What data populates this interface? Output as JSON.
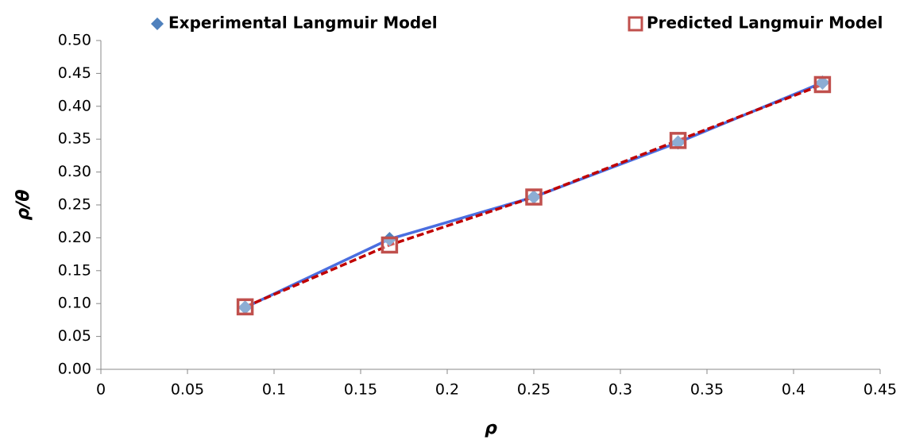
{
  "chart_data": {
    "type": "scatter",
    "x_label": "ρ",
    "y_label": "ρ/θ",
    "x": [
      0.0833,
      0.1667,
      0.25,
      0.3333,
      0.4167
    ],
    "series": [
      {
        "name": "Experimental Langmuir Model",
        "color": "#4f81bd",
        "text_color": "#3a3ad6",
        "line_color": "#4a6ee0",
        "marker": "diamond",
        "line": "solid",
        "values": [
          0.094,
          0.198,
          0.262,
          0.345,
          0.436
        ]
      },
      {
        "name": "Predicted Langmuir Model",
        "color": "#c0504d",
        "text_color": "#c00000",
        "line_color": "#c00000",
        "marker": "square",
        "line": "dashed",
        "values": [
          0.095,
          0.189,
          0.262,
          0.348,
          0.433
        ]
      }
    ],
    "xlim": [
      0,
      0.45
    ],
    "xticks": [
      0,
      0.05,
      0.1,
      0.15,
      0.2,
      0.25,
      0.3,
      0.35,
      0.4,
      0.45
    ],
    "ylim": [
      0,
      0.5
    ],
    "yticks": [
      {
        "value": 0,
        "label": "0.00"
      },
      {
        "value": 0.05,
        "label": "0.05"
      },
      {
        "value": 0.1,
        "label": "0.10"
      },
      {
        "value": 0.15,
        "label": "0.15"
      },
      {
        "value": 0.2,
        "label": "0.20"
      },
      {
        "value": 0.25,
        "label": "0.25"
      },
      {
        "value": 0.3,
        "label": "0.30"
      },
      {
        "value": 0.35,
        "label": "0.35"
      },
      {
        "value": 0.4,
        "label": "0.40"
      },
      {
        "value": 0.45,
        "label": "0.45"
      },
      {
        "value": 0.5,
        "label": "0.50"
      }
    ],
    "grid": false,
    "legend": "top"
  }
}
